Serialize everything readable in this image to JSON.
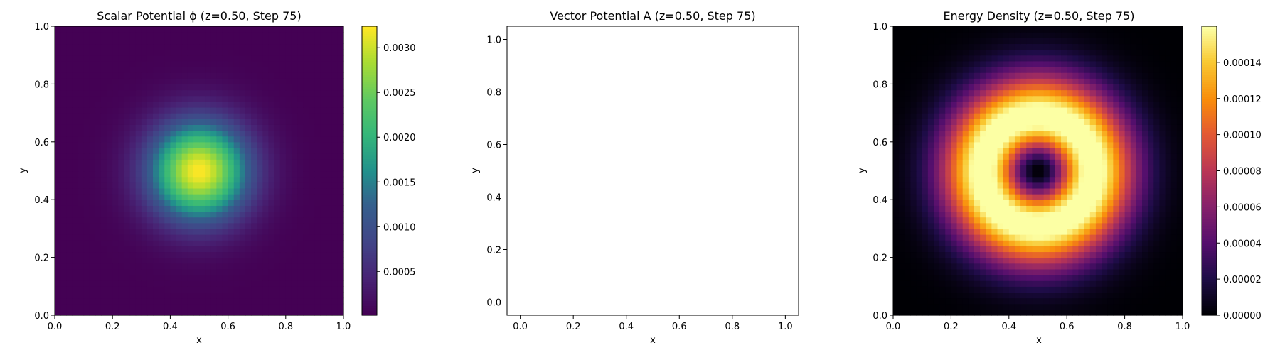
{
  "chart_data": [
    {
      "type": "heatmap",
      "title": "Scalar Potential ϕ (z=0.50, Step 75)",
      "xlabel": "x",
      "ylabel": "y",
      "xlim": [
        0,
        1
      ],
      "ylim": [
        0,
        1
      ],
      "xticks": [
        "0.0",
        "0.2",
        "0.4",
        "0.6",
        "0.8",
        "1.0"
      ],
      "yticks": [
        "0.0",
        "0.2",
        "0.4",
        "0.6",
        "0.8",
        "1.0"
      ],
      "colormap": "viridis",
      "field": "gaussian",
      "center": [
        0.5,
        0.5
      ],
      "grid_size": 50,
      "value_range": [
        1e-05,
        0.00324
      ],
      "colorbar_ticks": [
        "0.0005",
        "0.0010",
        "0.0015",
        "0.0020",
        "0.0025",
        "0.0030"
      ],
      "colorbar_tick_values": [
        0.0005,
        0.001,
        0.0015,
        0.002,
        0.0025,
        0.003
      ]
    },
    {
      "type": "scatter",
      "title": "Vector Potential A (z=0.50, Step 75)",
      "xlabel": "x",
      "ylabel": "y",
      "xlim": [
        -0.05,
        1.05
      ],
      "ylim": [
        -0.05,
        1.05
      ],
      "xticks": [
        "0.0",
        "0.2",
        "0.4",
        "0.6",
        "0.8",
        "1.0"
      ],
      "yticks": [
        "0.0",
        "0.2",
        "0.4",
        "0.6",
        "0.8",
        "1.0"
      ],
      "points": []
    },
    {
      "type": "heatmap",
      "title": "Energy Density (z=0.50, Step 75)",
      "xlabel": "x",
      "ylabel": "y",
      "xlim": [
        0,
        1
      ],
      "ylim": [
        0,
        1
      ],
      "xticks": [
        "0.0",
        "0.2",
        "0.4",
        "0.6",
        "0.8",
        "1.0"
      ],
      "yticks": [
        "0.0",
        "0.2",
        "0.4",
        "0.6",
        "0.8",
        "1.0"
      ],
      "colormap": "inferno",
      "field": "ring",
      "center": [
        0.5,
        0.5
      ],
      "ring_radius": 0.19,
      "grid_size": 50,
      "value_range": [
        0,
        0.00016
      ],
      "colorbar_ticks": [
        "0.00000",
        "0.00002",
        "0.00004",
        "0.00006",
        "0.00008",
        "0.00010",
        "0.00012",
        "0.00014"
      ],
      "colorbar_tick_values": [
        0,
        2e-05,
        4e-05,
        6e-05,
        8e-05,
        0.0001,
        0.00012,
        0.00014
      ]
    }
  ]
}
